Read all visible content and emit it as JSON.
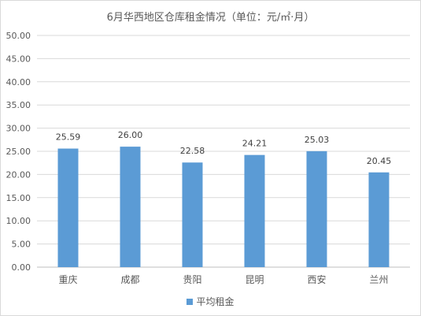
{
  "chart_data": {
    "type": "bar",
    "title": "6月华西地区仓库租金情况（单位：元/㎡·月）",
    "categories": [
      "重庆",
      "成都",
      "贵阳",
      "昆明",
      "西安",
      "兰州"
    ],
    "series": [
      {
        "name": "平均租金",
        "values": [
          25.59,
          26.0,
          22.58,
          24.21,
          25.03,
          20.45
        ]
      }
    ],
    "data_labels": [
      "25.59",
      "26.00",
      "22.58",
      "24.21",
      "25.03",
      "20.45"
    ],
    "yticks": [
      "0.00",
      "5.00",
      "10.00",
      "15.00",
      "20.00",
      "25.00",
      "30.00",
      "35.00",
      "40.00",
      "45.00",
      "50.00"
    ],
    "ylim": [
      0,
      50
    ],
    "grid": true,
    "legend_position": "bottom",
    "bar_color": "#5b9bd5"
  }
}
